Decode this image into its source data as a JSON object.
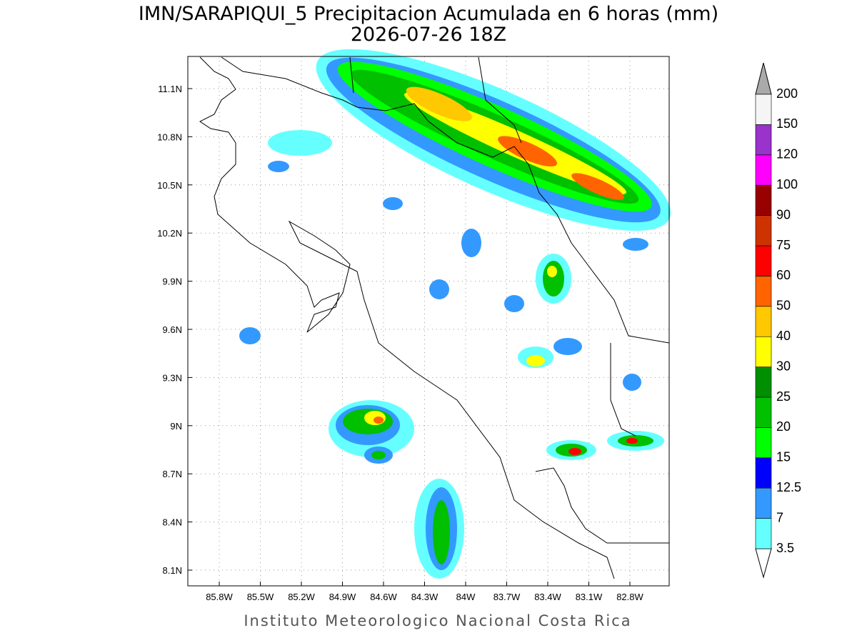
{
  "title": "IMN/SARAPIQUI_5 Precipitacion Acumulada en 6 horas (mm)",
  "subtitle": "2026-07-26 18Z",
  "map": {
    "lon_ticks": [
      "85.8W",
      "85.5W",
      "85.2W",
      "84.9W",
      "84.6W",
      "84.3W",
      "84W",
      "83.7W",
      "83.4W",
      "83.1W",
      "82.8W"
    ],
    "lat_ticks": [
      "11.1N",
      "10.8N",
      "10.5N",
      "10.2N",
      "9.9N",
      "9.6N",
      "9.3N",
      "9N",
      "8.7N",
      "8.4N",
      "8.1N"
    ]
  },
  "colorbar": {
    "levels": [
      3.5,
      7,
      12.5,
      15,
      20,
      25,
      30,
      40,
      50,
      60,
      75,
      90,
      100,
      120,
      150,
      200
    ],
    "colors": [
      "#66ffff",
      "#3399ff",
      "#0000ff",
      "#00ff00",
      "#00c000",
      "#008f00",
      "#ffff00",
      "#ffc800",
      "#ff6400",
      "#ff0000",
      "#cc3300",
      "#990000",
      "#ff00ff",
      "#9933cc",
      "#f5f5f5"
    ],
    "under_color": "#ffffff",
    "over_color": "#aaaaaa"
  },
  "footer": "Instituto Meteorologico Nacional Costa Rica"
}
